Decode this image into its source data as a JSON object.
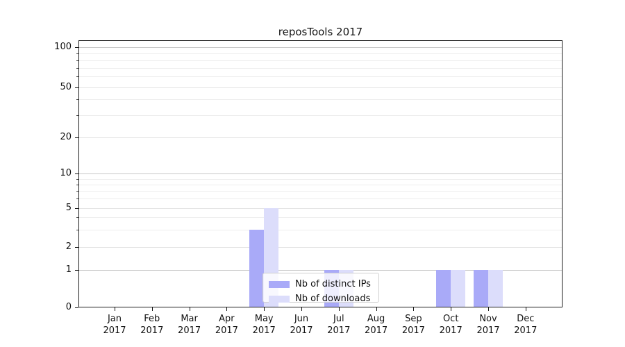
{
  "chart_data": {
    "type": "bar",
    "title": "reposTools 2017",
    "x_year": "2017",
    "categories": [
      "Jan",
      "Feb",
      "Mar",
      "Apr",
      "May",
      "Jun",
      "Jul",
      "Aug",
      "Sep",
      "Oct",
      "Nov",
      "Dec"
    ],
    "series": [
      {
        "name": "Nb of distinct IPs",
        "color": "#a9aaf8",
        "values": [
          0,
          0,
          0,
          0,
          3,
          0,
          1,
          0,
          0,
          1,
          1,
          0
        ]
      },
      {
        "name": "Nb of downloads",
        "color": "#dcddfb",
        "values": [
          0,
          0,
          0,
          0,
          5,
          0,
          1,
          0,
          0,
          1,
          1,
          0
        ]
      }
    ],
    "yaxis": {
      "scale": "log",
      "range": [
        0,
        100
      ],
      "major_ticks": [
        100,
        50,
        20,
        10,
        5,
        2,
        1,
        0
      ],
      "minor_ticks": [
        3,
        4,
        6,
        7,
        8,
        9,
        30,
        40,
        60,
        70,
        80,
        90
      ],
      "decade_ticks": [
        1,
        10,
        100
      ]
    },
    "xlabel": "",
    "ylabel": "",
    "grid": true,
    "legend": {
      "position": "lower-center",
      "entries": [
        "Nb of distinct IPs",
        "Nb of downloads"
      ]
    }
  },
  "colors": {
    "bar_distinct_ips": "#a9aaf8",
    "bar_downloads": "#dcddfb",
    "gridline_decade": "#c7c7c7",
    "gridline_labeled": "#e3e3e3",
    "gridline_minor": "#ededed",
    "axis": "#1a1a1a"
  }
}
